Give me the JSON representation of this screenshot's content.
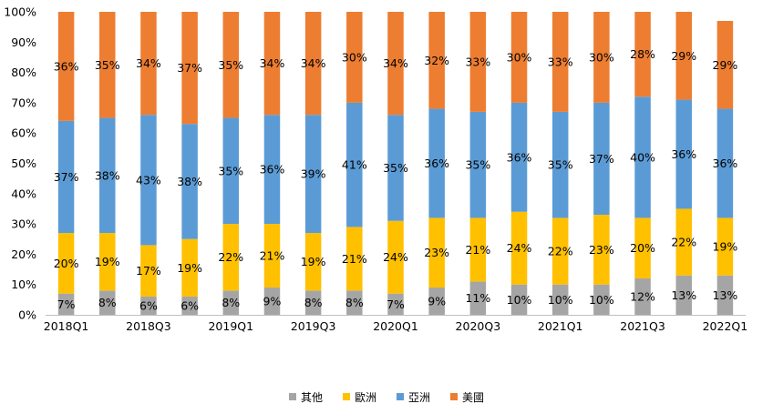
{
  "chart_data": {
    "type": "bar",
    "stacked": true,
    "percent": true,
    "title": "",
    "xlabel": "",
    "ylabel": "",
    "ylim": [
      0,
      100
    ],
    "yticks": [
      "0%",
      "10%",
      "20%",
      "30%",
      "40%",
      "50%",
      "60%",
      "70%",
      "80%",
      "90%",
      "100%"
    ],
    "grid": false,
    "legend_position": "bottom",
    "categories": [
      "2018Q1",
      "2018Q2",
      "2018Q3",
      "2018Q4",
      "2019Q1",
      "2019Q2",
      "2019Q3",
      "2019Q4",
      "2020Q1",
      "2020Q2",
      "2020Q3",
      "2020Q4",
      "2021Q1",
      "2021Q2",
      "2021Q3",
      "2021Q4",
      "2022Q1"
    ],
    "x_tick_labels": [
      "2018Q1",
      "",
      "2018Q3",
      "",
      "2019Q1",
      "",
      "2019Q3",
      "",
      "2020Q1",
      "",
      "2020Q3",
      "",
      "2021Q1",
      "",
      "2021Q3",
      "",
      "2022Q1"
    ],
    "series": [
      {
        "name": "其他",
        "color": "#A5A5A5",
        "values": [
          7,
          8,
          6,
          6,
          8,
          9,
          8,
          8,
          7,
          9,
          11,
          10,
          10,
          10,
          12,
          13,
          13
        ]
      },
      {
        "name": "歐洲",
        "color": "#FFC000",
        "values": [
          20,
          19,
          17,
          19,
          22,
          21,
          19,
          21,
          24,
          23,
          21,
          24,
          22,
          23,
          20,
          22,
          19
        ]
      },
      {
        "name": "亞洲",
        "color": "#5B9BD5",
        "values": [
          37,
          38,
          43,
          38,
          35,
          36,
          39,
          41,
          35,
          36,
          35,
          36,
          35,
          37,
          40,
          36,
          36
        ]
      },
      {
        "name": "美國",
        "color": "#ED7D31",
        "values": [
          36,
          35,
          34,
          37,
          35,
          34,
          34,
          30,
          34,
          32,
          33,
          30,
          33,
          30,
          28,
          29,
          29
        ]
      }
    ]
  }
}
